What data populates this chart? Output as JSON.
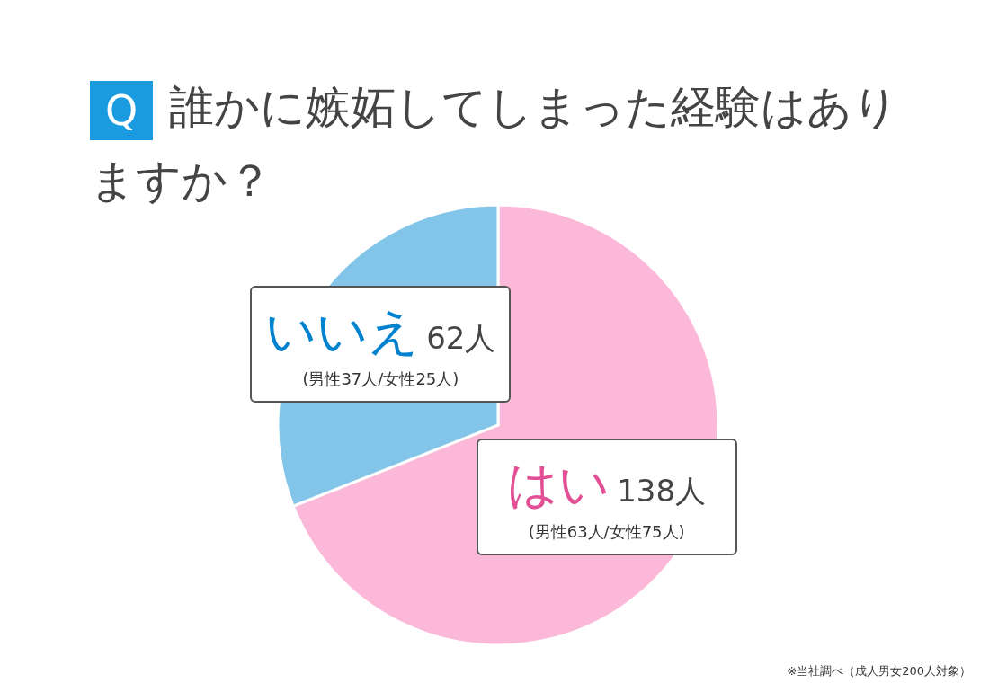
{
  "chart_data": {
    "type": "pie",
    "title": "Q 誰かに嫉妬してしまった経験はありますか？",
    "categories": [
      "はい",
      "いいえ"
    ],
    "values": [
      138,
      62
    ],
    "colors": [
      "#fbb8d8",
      "#82c5e8"
    ],
    "value_labels": [
      "138人",
      "62人"
    ],
    "annotations": [
      "(男性63人/女性75人)",
      "(男性37人/女性25人)",
      "※当社調べ（成人男女200人対象）"
    ],
    "legend": false
  }
}
